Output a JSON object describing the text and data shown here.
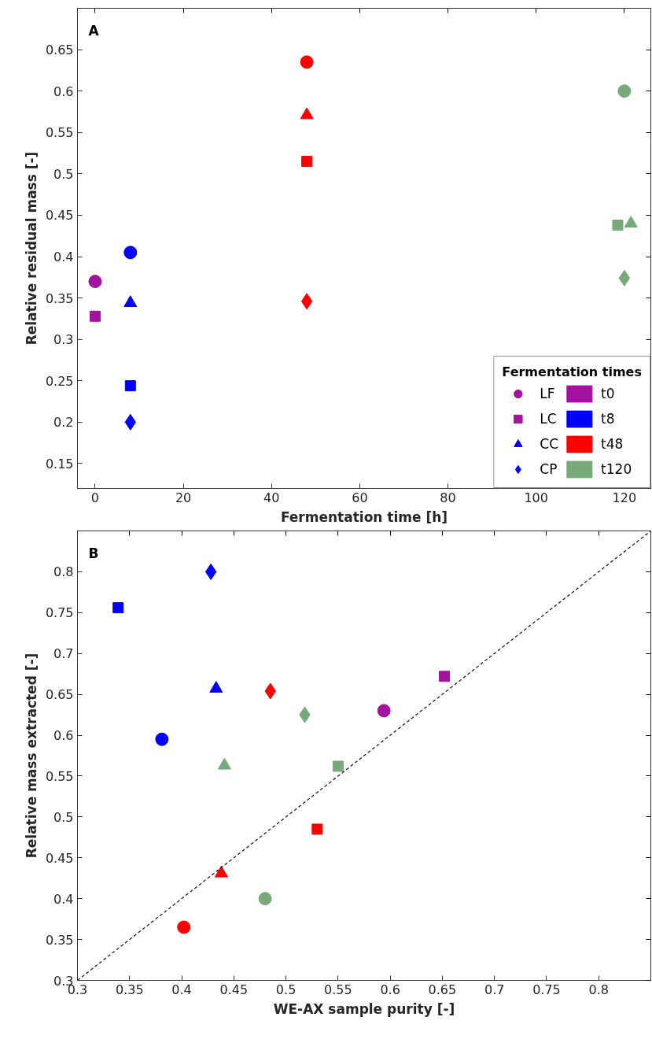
{
  "chart_data": [
    {
      "type": "scatter",
      "xlabel": "Fermentation time [h]",
      "ylabel": "Relative residual mass [-]",
      "annotations": [
        "A"
      ],
      "xlim": [
        -4,
        126
      ],
      "ylim": [
        0.12,
        0.7
      ],
      "xticks": [
        0,
        20,
        40,
        60,
        80,
        100,
        120
      ],
      "yticks": [
        0.15,
        0.2,
        0.25,
        0.3,
        0.35,
        0.4,
        0.45,
        0.5,
        0.55,
        0.6,
        0.65
      ],
      "grid": false,
      "legend": "bottom right",
      "legend_title": "Fermentation times",
      "series": [
        {
          "name": "LF",
          "marker": "circle",
          "x": [
            0,
            8,
            48,
            120
          ],
          "values": [
            0.37,
            0.405,
            0.635,
            0.6
          ],
          "colors": [
            "#a2129f",
            "#0000ff",
            "#ff0000",
            "#78a97a"
          ]
        },
        {
          "name": "LC",
          "marker": "square",
          "x": [
            0,
            8,
            48,
            118.5
          ],
          "values": [
            0.328,
            0.244,
            0.515,
            0.438
          ],
          "colors": [
            "#a2129f",
            "#0000ff",
            "#ff0000",
            "#78a97a"
          ]
        },
        {
          "name": "CC",
          "marker": "triangle",
          "x": [
            8,
            48,
            121.5
          ],
          "values": [
            0.344,
            0.571,
            0.44
          ],
          "colors": [
            "#0000ff",
            "#ff0000",
            "#78a97a"
          ]
        },
        {
          "name": "CP",
          "marker": "diamond",
          "x": [
            8,
            48,
            120
          ],
          "values": [
            0.2,
            0.346,
            0.374
          ],
          "colors": [
            "#0000ff",
            "#ff0000",
            "#78a97a"
          ]
        },
        {
          "name": "t0",
          "color": "#a2129f"
        },
        {
          "name": "t8",
          "color": "#0000ff"
        },
        {
          "name": "t48",
          "color": "#ff0000"
        },
        {
          "name": "t120",
          "color": "#78a97a"
        }
      ]
    },
    {
      "type": "scatter",
      "xlabel": "WE-AX sample purity [-]",
      "ylabel": "Relative mass extracted [-]",
      "annotations": [
        "B"
      ],
      "xlim": [
        0.3,
        0.85
      ],
      "ylim": [
        0.3,
        0.85
      ],
      "xticks": [
        0.3,
        0.35,
        0.4,
        0.45,
        0.5,
        0.55,
        0.6,
        0.65,
        0.7,
        0.75,
        0.8
      ],
      "yticks": [
        0.3,
        0.35,
        0.4,
        0.45,
        0.5,
        0.55,
        0.6,
        0.65,
        0.7,
        0.75,
        0.8
      ],
      "grid": false,
      "series": [
        {
          "marker": "circle",
          "x": [
            0.594,
            0.381,
            0.402,
            0.48
          ],
          "values": [
            0.63,
            0.595,
            0.365,
            0.4
          ],
          "colors": [
            "#a2129f",
            "#0000ff",
            "#ff0000",
            "#78a97a"
          ]
        },
        {
          "marker": "square",
          "x": [
            0.652,
            0.339,
            0.53,
            0.55
          ],
          "values": [
            0.672,
            0.756,
            0.485,
            0.562
          ],
          "colors": [
            "#a2129f",
            "#0000ff",
            "#ff0000",
            "#78a97a"
          ]
        },
        {
          "marker": "triangle",
          "x": [
            0.433,
            0.438,
            0.441
          ],
          "values": [
            0.657,
            0.431,
            0.563
          ],
          "colors": [
            "#0000ff",
            "#ff0000",
            "#78a97a"
          ]
        },
        {
          "marker": "diamond",
          "x": [
            0.428,
            0.485,
            0.518
          ],
          "values": [
            0.8,
            0.654,
            0.625
          ],
          "colors": [
            "#0000ff",
            "#ff0000",
            "#78a97a"
          ]
        },
        {
          "type": "line",
          "line_style": "dashed",
          "color": "#222222",
          "x": [
            0.3,
            0.85
          ],
          "values": [
            0.3,
            0.85
          ]
        }
      ]
    }
  ]
}
